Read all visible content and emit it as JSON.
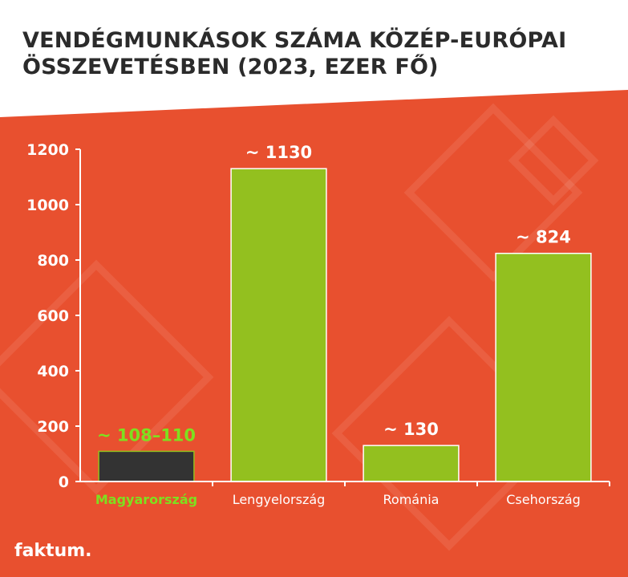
{
  "title": "VENDÉGMUNKÁSOK SZÁMA  KÖZÉP-EURÓPAI ÖSSZEVETÉSBEN (2023, EZER FŐ)",
  "brand": {
    "text": "faktum."
  },
  "colors": {
    "background": "#e8502f",
    "bar": "#93c01f",
    "bar_highlight": "#333333",
    "highlight_text": "#7ee01f",
    "text": "#ffffff"
  },
  "chart_data": {
    "type": "bar",
    "title": "VENDÉGMUNKÁSOK SZÁMA  KÖZÉP-EURÓPAI ÖSSZEVETÉSBEN (2023, EZER FŐ)",
    "xlabel": "",
    "ylabel": "",
    "categories": [
      "Magyarország",
      "Lengyelország",
      "Románia",
      "Csehország"
    ],
    "values": [
      109,
      1130,
      130,
      824
    ],
    "data_labels": [
      "~ 108–110",
      "~ 1130",
      "~ 130",
      "~ 824"
    ],
    "highlight_index": 0,
    "ylim": [
      0,
      1200
    ],
    "yticks": [
      0,
      200,
      400,
      600,
      800,
      1000,
      1200
    ],
    "grid": false,
    "legend": "none"
  }
}
